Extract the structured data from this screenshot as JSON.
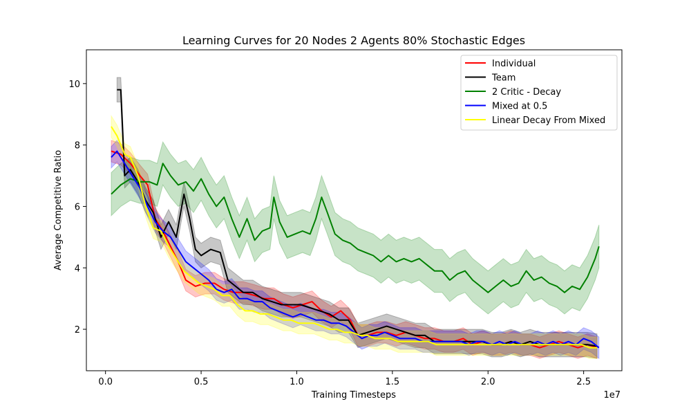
{
  "chart_data": {
    "type": "line",
    "title": "Learning Curves for 20 Nodes 2 Agents 80% Stochastic Edges",
    "xlabel": "Training Timesteps",
    "ylabel": "Average Competitive Ratio",
    "x_offset_label": "1e7",
    "xlim": [
      -0.1,
      2.7
    ],
    "ylim": [
      0.65,
      11.1
    ],
    "x_ticks": [
      0.0,
      0.5,
      1.0,
      1.5,
      2.0,
      2.5
    ],
    "x_tick_labels": [
      "0.0",
      "0.5",
      "1.0",
      "1.5",
      "2.0",
      "2.5"
    ],
    "y_ticks": [
      2,
      4,
      6,
      8,
      10
    ],
    "y_tick_labels": [
      "2",
      "4",
      "6",
      "8",
      "10"
    ],
    "legend_position": "top-right",
    "series": [
      {
        "name": "Individual",
        "color": "#ff0000",
        "points": [
          [
            0.03,
            7.8
          ],
          [
            0.08,
            7.7
          ],
          [
            0.13,
            7.4
          ],
          [
            0.18,
            7.0
          ],
          [
            0.22,
            6.7
          ],
          [
            0.26,
            5.6
          ],
          [
            0.3,
            5.2
          ],
          [
            0.34,
            4.7
          ],
          [
            0.38,
            4.2
          ],
          [
            0.42,
            3.6
          ],
          [
            0.47,
            3.4
          ],
          [
            0.52,
            3.5
          ],
          [
            0.57,
            3.5
          ],
          [
            0.62,
            3.3
          ],
          [
            0.67,
            3.2
          ],
          [
            0.72,
            3.2
          ],
          [
            0.78,
            3.1
          ],
          [
            0.83,
            3.0
          ],
          [
            0.88,
            3.0
          ],
          [
            0.93,
            2.8
          ],
          [
            0.98,
            2.7
          ],
          [
            1.03,
            2.8
          ],
          [
            1.08,
            2.9
          ],
          [
            1.13,
            2.6
          ],
          [
            1.18,
            2.4
          ],
          [
            1.23,
            2.6
          ],
          [
            1.28,
            2.3
          ],
          [
            1.32,
            1.8
          ],
          [
            1.37,
            1.8
          ],
          [
            1.42,
            1.9
          ],
          [
            1.47,
            1.9
          ],
          [
            1.52,
            1.8
          ],
          [
            1.57,
            1.9
          ],
          [
            1.62,
            1.8
          ],
          [
            1.67,
            1.7
          ],
          [
            1.72,
            1.7
          ],
          [
            1.77,
            1.6
          ],
          [
            1.82,
            1.6
          ],
          [
            1.87,
            1.7
          ],
          [
            1.92,
            1.5
          ],
          [
            1.97,
            1.6
          ],
          [
            2.02,
            1.5
          ],
          [
            2.07,
            1.5
          ],
          [
            2.12,
            1.6
          ],
          [
            2.17,
            1.5
          ],
          [
            2.22,
            1.5
          ],
          [
            2.27,
            1.4
          ],
          [
            2.32,
            1.5
          ],
          [
            2.37,
            1.6
          ],
          [
            2.42,
            1.5
          ],
          [
            2.47,
            1.4
          ],
          [
            2.52,
            1.5
          ],
          [
            2.57,
            1.4
          ]
        ],
        "band": 0.35
      },
      {
        "name": "Team",
        "color": "#000000",
        "points": [
          [
            0.06,
            9.8
          ],
          [
            0.08,
            9.8
          ],
          [
            0.1,
            7.0
          ],
          [
            0.13,
            7.2
          ],
          [
            0.17,
            6.8
          ],
          [
            0.21,
            6.2
          ],
          [
            0.25,
            5.8
          ],
          [
            0.29,
            5.0
          ],
          [
            0.33,
            5.5
          ],
          [
            0.37,
            5.0
          ],
          [
            0.41,
            6.4
          ],
          [
            0.44,
            5.6
          ],
          [
            0.47,
            4.6
          ],
          [
            0.5,
            4.4
          ],
          [
            0.55,
            4.6
          ],
          [
            0.6,
            4.5
          ],
          [
            0.64,
            3.6
          ],
          [
            0.68,
            3.4
          ],
          [
            0.72,
            3.2
          ],
          [
            0.77,
            3.2
          ],
          [
            0.82,
            3.0
          ],
          [
            0.87,
            2.9
          ],
          [
            0.92,
            2.8
          ],
          [
            0.97,
            2.8
          ],
          [
            1.02,
            2.8
          ],
          [
            1.07,
            2.7
          ],
          [
            1.12,
            2.6
          ],
          [
            1.17,
            2.5
          ],
          [
            1.22,
            2.3
          ],
          [
            1.27,
            2.3
          ],
          [
            1.32,
            1.8
          ],
          [
            1.37,
            1.9
          ],
          [
            1.42,
            2.0
          ],
          [
            1.47,
            2.1
          ],
          [
            1.52,
            2.0
          ],
          [
            1.57,
            1.9
          ],
          [
            1.62,
            1.8
          ],
          [
            1.67,
            1.8
          ],
          [
            1.72,
            1.6
          ],
          [
            1.77,
            1.6
          ],
          [
            1.82,
            1.6
          ],
          [
            1.87,
            1.6
          ],
          [
            1.92,
            1.6
          ],
          [
            1.97,
            1.6
          ],
          [
            2.02,
            1.5
          ],
          [
            2.07,
            1.5
          ],
          [
            2.12,
            1.6
          ],
          [
            2.17,
            1.5
          ],
          [
            2.22,
            1.6
          ],
          [
            2.27,
            1.5
          ],
          [
            2.32,
            1.5
          ],
          [
            2.37,
            1.5
          ],
          [
            2.42,
            1.5
          ],
          [
            2.47,
            1.5
          ],
          [
            2.52,
            1.5
          ],
          [
            2.57,
            1.45
          ]
        ],
        "band": 0.4
      },
      {
        "name": "2 Critic - Decay",
        "color": "#008000",
        "points": [
          [
            0.03,
            6.4
          ],
          [
            0.08,
            6.7
          ],
          [
            0.13,
            6.9
          ],
          [
            0.18,
            6.8
          ],
          [
            0.23,
            6.8
          ],
          [
            0.27,
            6.7
          ],
          [
            0.3,
            7.4
          ],
          [
            0.34,
            7.0
          ],
          [
            0.38,
            6.7
          ],
          [
            0.42,
            6.8
          ],
          [
            0.46,
            6.5
          ],
          [
            0.5,
            6.9
          ],
          [
            0.54,
            6.4
          ],
          [
            0.58,
            6.0
          ],
          [
            0.62,
            6.3
          ],
          [
            0.66,
            5.6
          ],
          [
            0.7,
            5.0
          ],
          [
            0.74,
            5.6
          ],
          [
            0.78,
            4.9
          ],
          [
            0.82,
            5.2
          ],
          [
            0.86,
            5.3
          ],
          [
            0.88,
            6.3
          ],
          [
            0.91,
            5.5
          ],
          [
            0.95,
            5.0
          ],
          [
            0.99,
            5.1
          ],
          [
            1.03,
            5.2
          ],
          [
            1.07,
            5.1
          ],
          [
            1.1,
            5.6
          ],
          [
            1.13,
            6.3
          ],
          [
            1.16,
            5.8
          ],
          [
            1.2,
            5.1
          ],
          [
            1.24,
            4.9
          ],
          [
            1.28,
            4.8
          ],
          [
            1.32,
            4.6
          ],
          [
            1.36,
            4.5
          ],
          [
            1.4,
            4.4
          ],
          [
            1.44,
            4.2
          ],
          [
            1.48,
            4.4
          ],
          [
            1.52,
            4.2
          ],
          [
            1.56,
            4.3
          ],
          [
            1.6,
            4.2
          ],
          [
            1.64,
            4.3
          ],
          [
            1.68,
            4.1
          ],
          [
            1.72,
            3.9
          ],
          [
            1.76,
            3.9
          ],
          [
            1.8,
            3.6
          ],
          [
            1.84,
            3.8
          ],
          [
            1.88,
            3.9
          ],
          [
            1.92,
            3.6
          ],
          [
            1.96,
            3.4
          ],
          [
            2.0,
            3.2
          ],
          [
            2.04,
            3.4
          ],
          [
            2.08,
            3.6
          ],
          [
            2.12,
            3.4
          ],
          [
            2.16,
            3.5
          ],
          [
            2.2,
            3.9
          ],
          [
            2.24,
            3.6
          ],
          [
            2.28,
            3.7
          ],
          [
            2.32,
            3.5
          ],
          [
            2.36,
            3.4
          ],
          [
            2.4,
            3.2
          ],
          [
            2.44,
            3.4
          ],
          [
            2.48,
            3.3
          ],
          [
            2.52,
            3.7
          ],
          [
            2.56,
            4.3
          ],
          [
            2.58,
            4.7
          ]
        ],
        "band": 0.7
      },
      {
        "name": "Mixed at 0.5",
        "color": "#0000ff",
        "points": [
          [
            0.03,
            7.6
          ],
          [
            0.06,
            7.8
          ],
          [
            0.1,
            7.4
          ],
          [
            0.14,
            7.0
          ],
          [
            0.18,
            6.6
          ],
          [
            0.22,
            6.0
          ],
          [
            0.26,
            5.5
          ],
          [
            0.3,
            5.2
          ],
          [
            0.34,
            5.0
          ],
          [
            0.38,
            4.6
          ],
          [
            0.42,
            4.2
          ],
          [
            0.46,
            4.0
          ],
          [
            0.5,
            3.8
          ],
          [
            0.54,
            3.6
          ],
          [
            0.58,
            3.3
          ],
          [
            0.62,
            3.2
          ],
          [
            0.66,
            3.3
          ],
          [
            0.7,
            3.0
          ],
          [
            0.74,
            3.0
          ],
          [
            0.78,
            2.9
          ],
          [
            0.82,
            2.9
          ],
          [
            0.86,
            2.7
          ],
          [
            0.9,
            2.6
          ],
          [
            0.94,
            2.5
          ],
          [
            0.98,
            2.4
          ],
          [
            1.02,
            2.5
          ],
          [
            1.06,
            2.4
          ],
          [
            1.1,
            2.3
          ],
          [
            1.14,
            2.3
          ],
          [
            1.18,
            2.2
          ],
          [
            1.22,
            2.2
          ],
          [
            1.26,
            2.1
          ],
          [
            1.3,
            1.9
          ],
          [
            1.34,
            1.7
          ],
          [
            1.38,
            1.8
          ],
          [
            1.42,
            1.8
          ],
          [
            1.46,
            1.9
          ],
          [
            1.5,
            1.8
          ],
          [
            1.54,
            1.7
          ],
          [
            1.58,
            1.7
          ],
          [
            1.62,
            1.7
          ],
          [
            1.66,
            1.6
          ],
          [
            1.7,
            1.6
          ],
          [
            1.74,
            1.6
          ],
          [
            1.78,
            1.6
          ],
          [
            1.82,
            1.6
          ],
          [
            1.86,
            1.6
          ],
          [
            1.9,
            1.5
          ],
          [
            1.94,
            1.6
          ],
          [
            1.98,
            1.6
          ],
          [
            2.02,
            1.5
          ],
          [
            2.06,
            1.6
          ],
          [
            2.1,
            1.5
          ],
          [
            2.14,
            1.6
          ],
          [
            2.18,
            1.5
          ],
          [
            2.22,
            1.5
          ],
          [
            2.26,
            1.6
          ],
          [
            2.3,
            1.5
          ],
          [
            2.34,
            1.6
          ],
          [
            2.38,
            1.5
          ],
          [
            2.42,
            1.6
          ],
          [
            2.46,
            1.5
          ],
          [
            2.5,
            1.7
          ],
          [
            2.54,
            1.6
          ],
          [
            2.58,
            1.4
          ]
        ],
        "band": 0.35
      },
      {
        "name": "Linear Decay From Mixed",
        "color": "#ffff00",
        "points": [
          [
            0.03,
            8.6
          ],
          [
            0.06,
            8.3
          ],
          [
            0.1,
            7.7
          ],
          [
            0.13,
            7.6
          ],
          [
            0.17,
            7.0
          ],
          [
            0.21,
            6.0
          ],
          [
            0.25,
            5.3
          ],
          [
            0.29,
            5.2
          ],
          [
            0.33,
            4.7
          ],
          [
            0.37,
            4.3
          ],
          [
            0.41,
            3.9
          ],
          [
            0.45,
            3.7
          ],
          [
            0.49,
            3.5
          ],
          [
            0.53,
            3.4
          ],
          [
            0.57,
            3.3
          ],
          [
            0.61,
            3.1
          ],
          [
            0.65,
            3.1
          ],
          [
            0.69,
            2.8
          ],
          [
            0.73,
            2.6
          ],
          [
            0.77,
            2.6
          ],
          [
            0.81,
            2.5
          ],
          [
            0.85,
            2.5
          ],
          [
            0.89,
            2.4
          ],
          [
            0.93,
            2.3
          ],
          [
            0.97,
            2.3
          ],
          [
            1.01,
            2.2
          ],
          [
            1.05,
            2.2
          ],
          [
            1.09,
            2.2
          ],
          [
            1.13,
            2.1
          ],
          [
            1.17,
            2.0
          ],
          [
            1.21,
            2.0
          ],
          [
            1.25,
            1.9
          ],
          [
            1.29,
            1.9
          ],
          [
            1.33,
            1.8
          ],
          [
            1.37,
            1.8
          ],
          [
            1.41,
            1.7
          ],
          [
            1.45,
            1.7
          ],
          [
            1.49,
            1.7
          ],
          [
            1.53,
            1.6
          ],
          [
            1.57,
            1.6
          ],
          [
            1.61,
            1.6
          ],
          [
            1.65,
            1.6
          ],
          [
            1.69,
            1.6
          ],
          [
            1.73,
            1.5
          ],
          [
            1.77,
            1.5
          ],
          [
            1.81,
            1.5
          ],
          [
            1.85,
            1.5
          ],
          [
            1.89,
            1.5
          ],
          [
            1.93,
            1.5
          ],
          [
            1.97,
            1.5
          ],
          [
            2.01,
            1.5
          ],
          [
            2.05,
            1.5
          ],
          [
            2.09,
            1.5
          ],
          [
            2.13,
            1.5
          ],
          [
            2.17,
            1.5
          ],
          [
            2.21,
            1.5
          ],
          [
            2.25,
            1.5
          ],
          [
            2.29,
            1.5
          ],
          [
            2.33,
            1.5
          ],
          [
            2.37,
            1.5
          ],
          [
            2.41,
            1.5
          ],
          [
            2.45,
            1.5
          ],
          [
            2.49,
            1.5
          ],
          [
            2.53,
            1.4
          ],
          [
            2.57,
            1.4
          ]
        ],
        "band": 0.35
      }
    ]
  }
}
